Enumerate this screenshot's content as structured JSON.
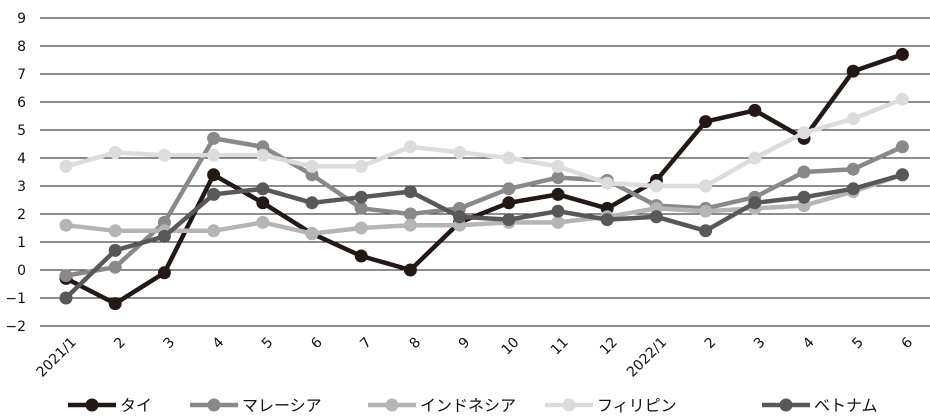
{
  "chart_data": {
    "type": "line",
    "categories": [
      "2021/1",
      "2",
      "3",
      "4",
      "5",
      "6",
      "7",
      "8",
      "9",
      "10",
      "11",
      "12",
      "2022/1",
      "2",
      "3",
      "4",
      "5",
      "6"
    ],
    "ylim": [
      -2,
      9
    ],
    "yticks": [
      "−2",
      "−1",
      "0",
      "1",
      "2",
      "3",
      "4",
      "5",
      "6",
      "7",
      "8",
      "9"
    ],
    "grid": true,
    "legend_position": "bottom",
    "series": [
      {
        "name": "タイ",
        "color": "#231815",
        "values": [
          -0.3,
          -1.2,
          -0.1,
          3.4,
          2.4,
          1.3,
          0.5,
          0.0,
          1.7,
          2.4,
          2.7,
          2.2,
          3.2,
          5.3,
          5.7,
          4.7,
          7.1,
          7.7
        ]
      },
      {
        "name": "マレーシア",
        "color": "#898989",
        "values": [
          -0.2,
          0.1,
          1.7,
          4.7,
          4.4,
          3.4,
          2.2,
          2.0,
          2.2,
          2.9,
          3.3,
          3.2,
          2.3,
          2.2,
          2.6,
          3.5,
          3.6,
          4.4
        ]
      },
      {
        "name": "インドネシア",
        "color": "#b5b5b5",
        "values": [
          1.6,
          1.4,
          1.4,
          1.4,
          1.7,
          1.3,
          1.5,
          1.6,
          1.6,
          1.7,
          1.7,
          1.9,
          2.2,
          2.1,
          2.2,
          2.3,
          2.8,
          3.4
        ]
      },
      {
        "name": "フィリピン",
        "color": "#dcdcdc",
        "values": [
          3.7,
          4.2,
          4.1,
          4.1,
          4.1,
          3.7,
          3.7,
          4.4,
          4.2,
          4.0,
          3.7,
          3.1,
          3.0,
          3.0,
          4.0,
          4.9,
          5.4,
          6.1
        ]
      },
      {
        "name": "ベトナム",
        "color": "#595757",
        "values": [
          -1.0,
          0.7,
          1.2,
          2.7,
          2.9,
          2.4,
          2.6,
          2.8,
          1.9,
          1.8,
          2.1,
          1.8,
          1.9,
          1.4,
          2.4,
          2.6,
          2.9,
          3.4
        ]
      }
    ]
  }
}
